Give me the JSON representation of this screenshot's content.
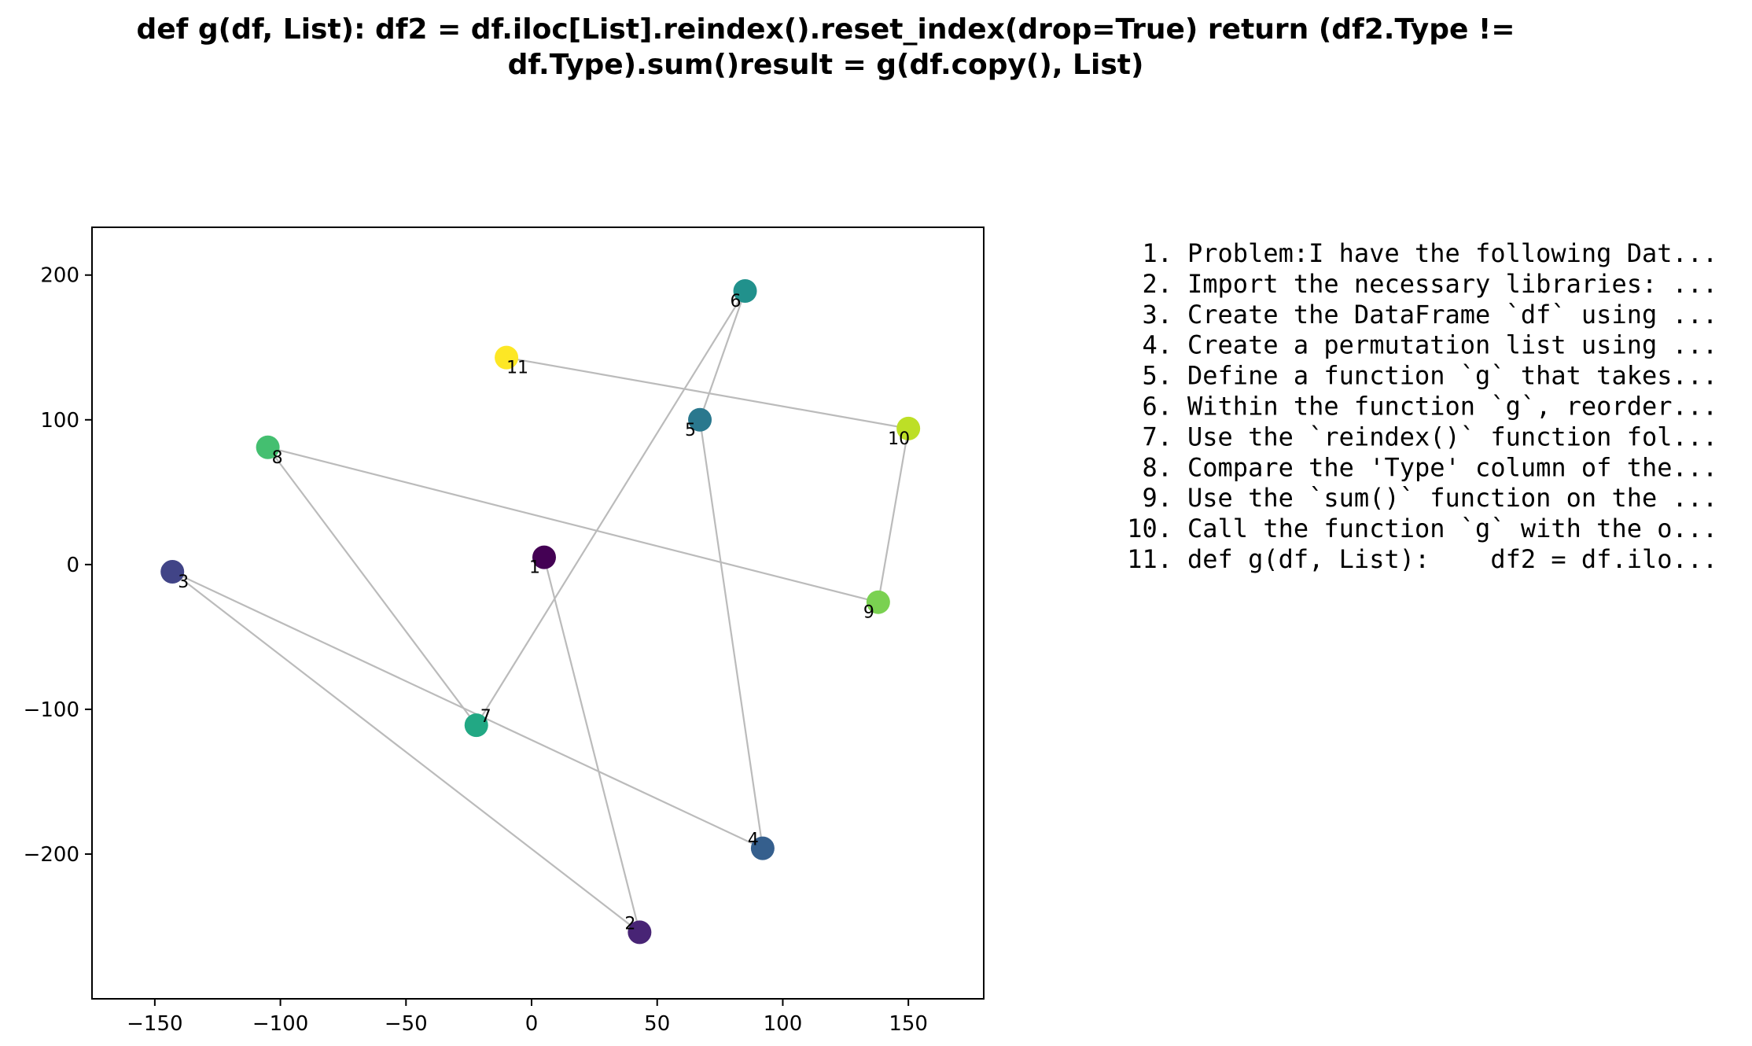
{
  "chart_data": {
    "type": "scatter",
    "title": "def g(df, List):    df2 = df.iloc[List].reindex().reset_index(drop=True)    return (df2.Type != df.Type).sum()result = g(df.copy(), List)",
    "title_lines": [
      "def g(df, List):    df2 = df.iloc[List].reindex().reset_index(drop=True)    return (df2.Type !=",
      "df.Type).sum()result = g(df.copy(), List)"
    ],
    "xlabel": "",
    "ylabel": "",
    "xlim": [
      -175,
      180
    ],
    "ylim": [
      -300,
      233
    ],
    "x_ticks": [
      -150,
      -100,
      -50,
      0,
      50,
      100,
      150
    ],
    "x_tick_labels": [
      "−150",
      "−100",
      "−50",
      "0",
      "50",
      "100",
      "150"
    ],
    "y_ticks": [
      -200,
      -100,
      0,
      100,
      200
    ],
    "y_tick_labels": [
      "−200",
      "−100",
      "0",
      "100",
      "200"
    ],
    "grid": false,
    "colormap": "viridis",
    "edge_color": "#bbbbbb",
    "points": [
      {
        "label": "1",
        "x": 5,
        "y": 5,
        "color": "#440154"
      },
      {
        "label": "2",
        "x": 43,
        "y": -254,
        "color": "#482475"
      },
      {
        "label": "3",
        "x": -143,
        "y": -5,
        "color": "#414487"
      },
      {
        "label": "4",
        "x": 92,
        "y": -196,
        "color": "#355f8d"
      },
      {
        "label": "5",
        "x": 67,
        "y": 100,
        "color": "#2a788e"
      },
      {
        "label": "6",
        "x": 85,
        "y": 189,
        "color": "#21918c"
      },
      {
        "label": "7",
        "x": -22,
        "y": -111,
        "color": "#22a884"
      },
      {
        "label": "8",
        "x": -105,
        "y": 81,
        "color": "#44bf70"
      },
      {
        "label": "9",
        "x": 138,
        "y": -26,
        "color": "#7ad151"
      },
      {
        "label": "10",
        "x": 150,
        "y": 94,
        "color": "#bddf26"
      },
      {
        "label": "11",
        "x": -10,
        "y": 143,
        "color": "#fde725"
      }
    ],
    "edges": [
      [
        1,
        2
      ],
      [
        2,
        3
      ],
      [
        3,
        4
      ],
      [
        4,
        5
      ],
      [
        5,
        6
      ],
      [
        6,
        7
      ],
      [
        7,
        8
      ],
      [
        8,
        9
      ],
      [
        9,
        10
      ],
      [
        10,
        11
      ]
    ],
    "label_offsets": {
      "1": [
        -12,
        12
      ],
      "2": [
        -12,
        -12
      ],
      "3": [
        14,
        12
      ],
      "4": [
        -12,
        -12
      ],
      "5": [
        -12,
        12
      ],
      "6": [
        -12,
        12
      ],
      "7": [
        12,
        -12
      ],
      "8": [
        12,
        12
      ],
      "9": [
        -12,
        12
      ],
      "10": [
        -12,
        12
      ],
      "11": [
        14,
        12
      ]
    }
  },
  "steps": [
    "1. Problem:I have the following Dat...",
    "2. Import the necessary libraries: ...",
    "3. Create the DataFrame `df` using ...",
    "4. Create a permutation list using ...",
    "5. Define a function `g` that takes...",
    "6. Within the function `g`, reorder...",
    "7. Use the `reindex()` function fol...",
    "8. Compare the 'Type' column of the...",
    "9. Use the `sum()` function on the ...",
    "10. Call the function `g` with the o...",
    "11. def g(df, List):    df2 = df.ilo..."
  ]
}
